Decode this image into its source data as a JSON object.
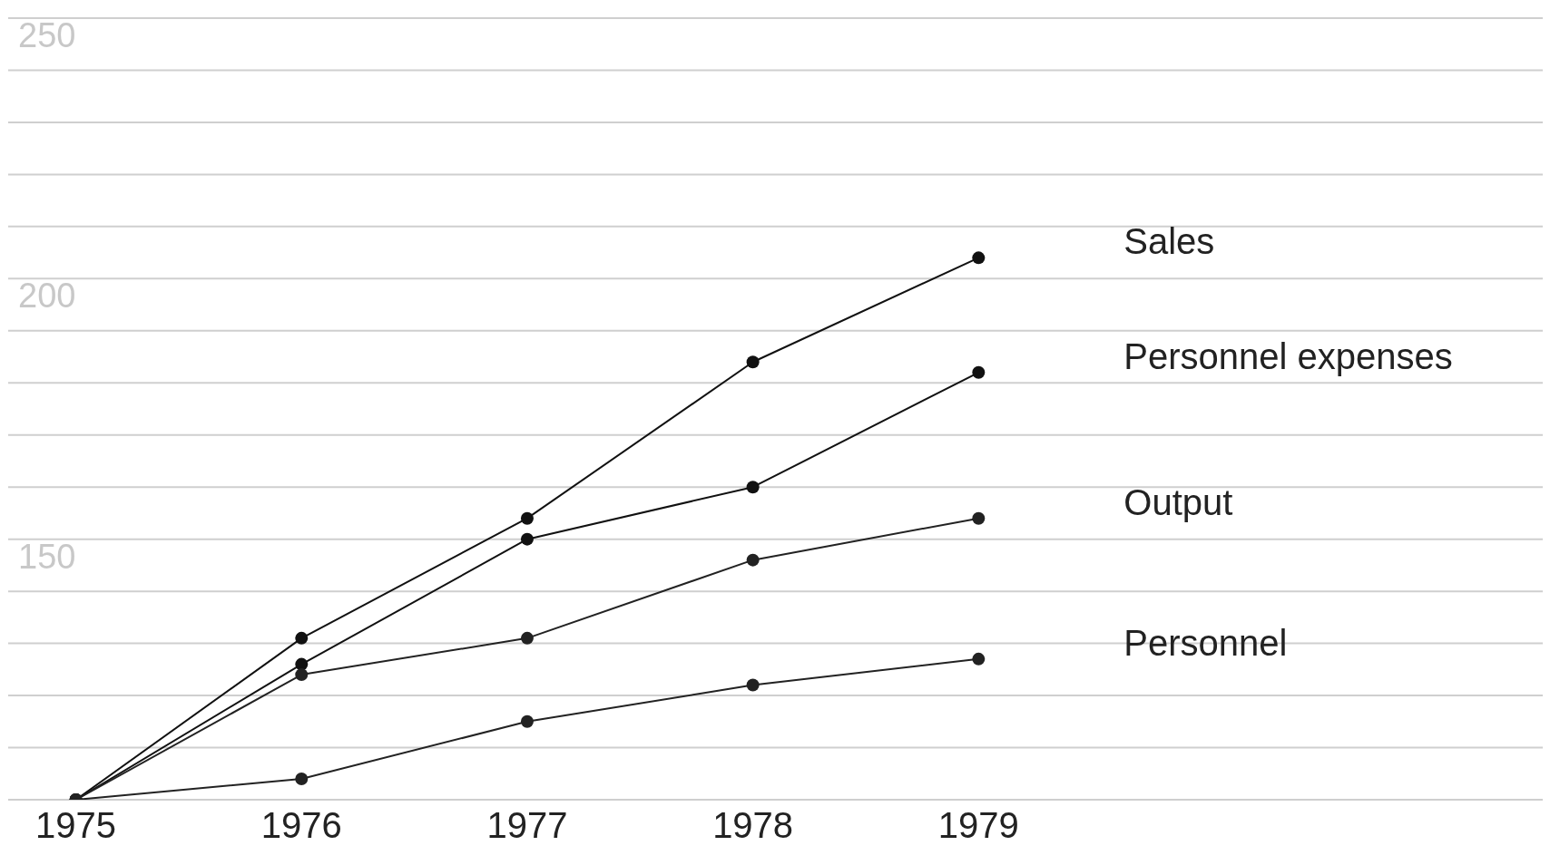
{
  "chart_data": {
    "type": "line",
    "x": [
      1975,
      1976,
      1977,
      1978,
      1979
    ],
    "series": [
      {
        "name": "Sales",
        "color": "#111111",
        "values": [
          100,
          131,
          154,
          184,
          204
        ]
      },
      {
        "name": "Personnel expenses",
        "color": "#111111",
        "values": [
          100,
          126,
          150,
          160,
          182
        ]
      },
      {
        "name": "Output",
        "color": "#222222",
        "values": [
          100,
          124,
          131,
          146,
          154
        ]
      },
      {
        "name": "Personnel",
        "color": "#222222",
        "values": [
          100,
          104,
          115,
          122,
          127
        ]
      }
    ],
    "xlim": [
      1974.7,
      1981.5
    ],
    "xticks": [
      1975,
      1976,
      1977,
      1978,
      1979
    ],
    "ylim": [
      100,
      250
    ],
    "yticks": [
      {
        "value": 100,
        "label": null
      },
      {
        "value": 110,
        "label": null
      },
      {
        "value": 120,
        "label": null
      },
      {
        "value": 130,
        "label": null
      },
      {
        "value": 140,
        "label": null
      },
      150,
      {
        "value": 160,
        "label": null
      },
      {
        "value": 170,
        "label": null
      },
      {
        "value": 180,
        "label": null
      },
      {
        "value": 190,
        "label": null
      },
      200,
      {
        "value": 210,
        "label": null
      },
      {
        "value": 220,
        "label": null
      },
      {
        "value": 230,
        "label": null
      },
      {
        "value": 240,
        "label": null
      },
      250
    ],
    "grid": "y",
    "marker": "circle",
    "line_style": "solid"
  }
}
